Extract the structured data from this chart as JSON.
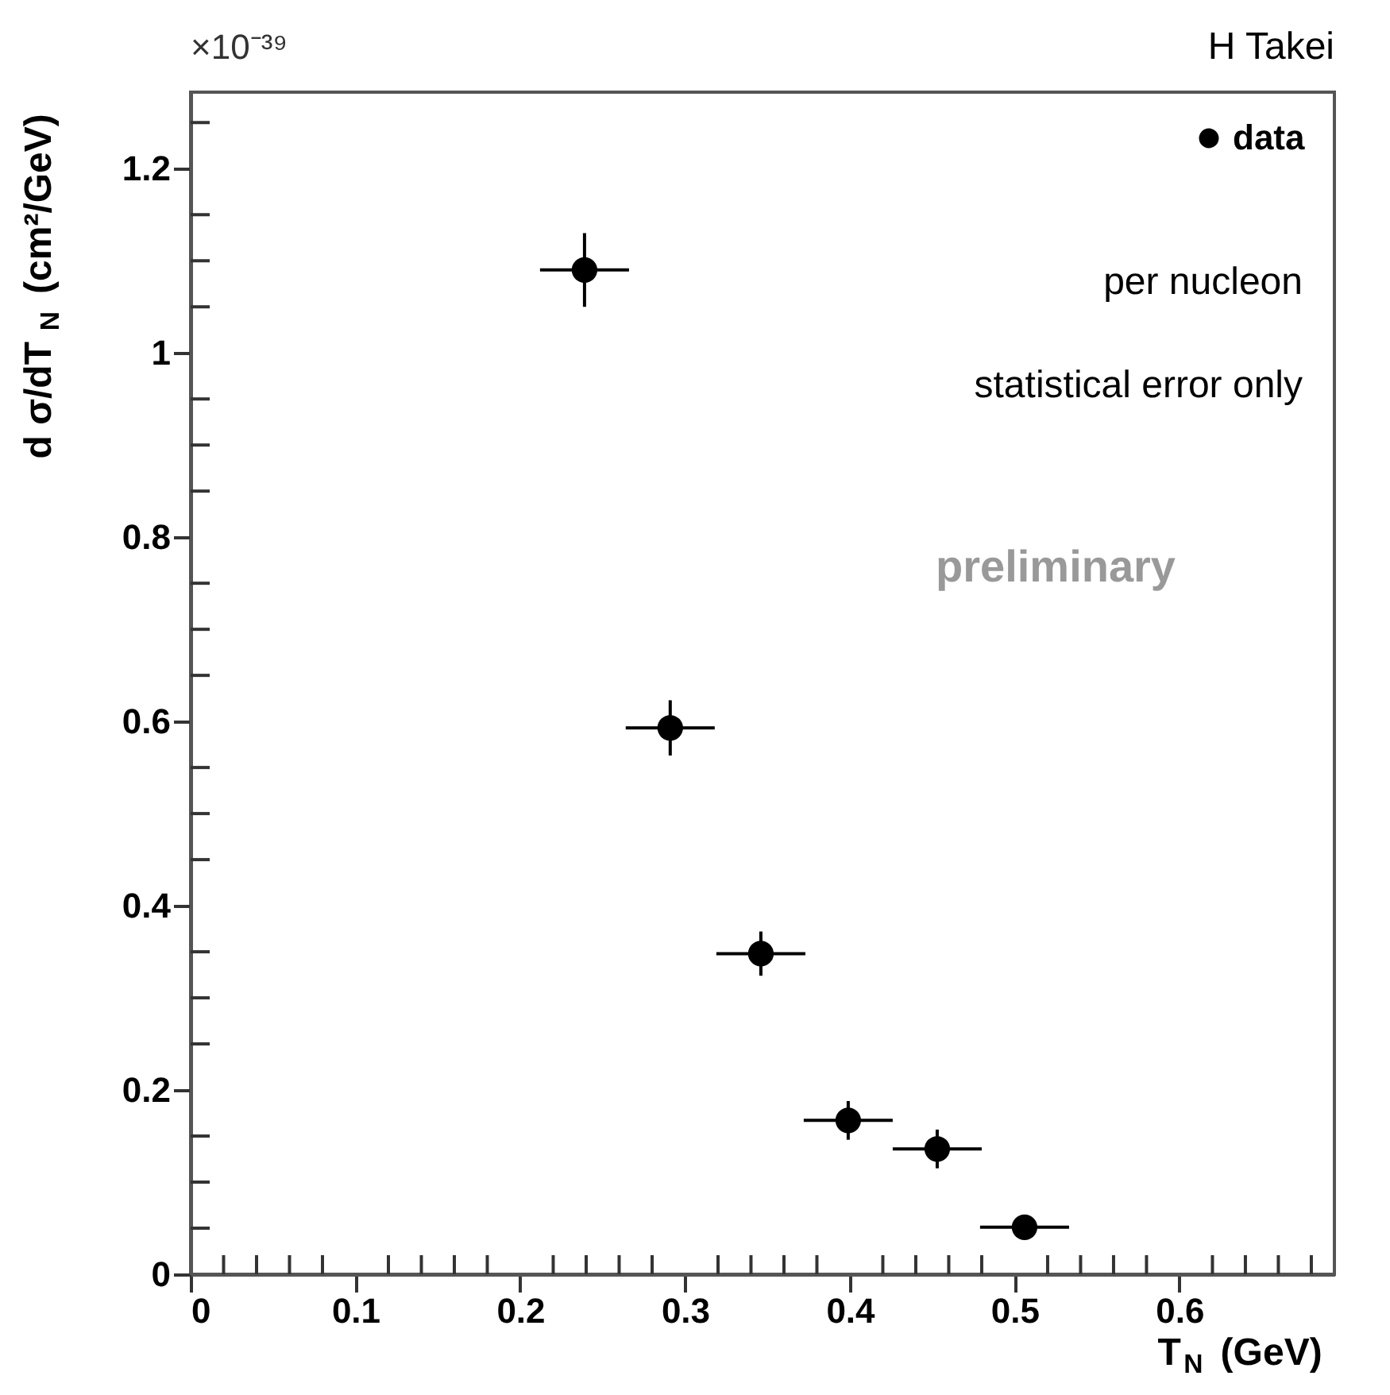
{
  "chart_data": {
    "type": "scatter",
    "xlabel": "T$_{N}$ (GeV)",
    "ylabel": "d σ/dT$_{N}$ (cm²/GeV)",
    "annotations": [
      "×10⁻³⁹",
      "H Takei",
      "per nucleon",
      "statistical error only",
      "preliminary"
    ],
    "x": [
      0.239,
      0.291,
      0.346,
      0.399,
      0.453,
      0.506
    ],
    "series": [
      {
        "name": "data",
        "color": "#000000",
        "values": [
          1.09,
          0.593,
          0.348,
          0.167,
          0.136,
          0.051
        ],
        "errors": [
          0.04,
          0.03,
          0.024,
          0.021,
          0.021,
          null
        ],
        "xerrors": [
          0.027,
          0.027,
          0.027,
          0.027,
          0.027,
          0.027
        ]
      }
    ],
    "marker": "circle",
    "legend": "top right",
    "grid": false,
    "xlim": [
      0,
      0.694
    ],
    "ylim": [
      0,
      1.283
    ],
    "xticks": [
      0,
      {
        "value": 0.02,
        "label": null
      },
      {
        "value": 0.04,
        "label": null
      },
      {
        "value": 0.06,
        "label": null
      },
      {
        "value": 0.08,
        "label": null
      },
      0.1,
      {
        "value": 0.12,
        "label": null
      },
      {
        "value": 0.14,
        "label": null
      },
      {
        "value": 0.16,
        "label": null
      },
      {
        "value": 0.18,
        "label": null
      },
      0.2,
      {
        "value": 0.22,
        "label": null
      },
      {
        "value": 0.24,
        "label": null
      },
      {
        "value": 0.26,
        "label": null
      },
      {
        "value": 0.28,
        "label": null
      },
      0.3,
      {
        "value": 0.32,
        "label": null
      },
      {
        "value": 0.34,
        "label": null
      },
      {
        "value": 0.36,
        "label": null
      },
      {
        "value": 0.38,
        "label": null
      },
      0.4,
      {
        "value": 0.42,
        "label": null
      },
      {
        "value": 0.44,
        "label": null
      },
      {
        "value": 0.46,
        "label": null
      },
      {
        "value": 0.48,
        "label": null
      },
      0.5,
      {
        "value": 0.52,
        "label": null
      },
      {
        "value": 0.54,
        "label": null
      },
      {
        "value": 0.56,
        "label": null
      },
      {
        "value": 0.58,
        "label": null
      },
      0.6,
      {
        "value": 0.62,
        "label": null
      },
      {
        "value": 0.64,
        "label": null
      },
      {
        "value": 0.66,
        "label": null
      },
      {
        "value": 0.68,
        "label": null
      }
    ],
    "yticks": [
      0,
      {
        "value": 0.05,
        "label": null
      },
      {
        "value": 0.1,
        "label": null
      },
      {
        "value": 0.15,
        "label": null
      },
      0.2,
      {
        "value": 0.25,
        "label": null
      },
      {
        "value": 0.3,
        "label": null
      },
      {
        "value": 0.35,
        "label": null
      },
      0.4,
      {
        "value": 0.45,
        "label": null
      },
      {
        "value": 0.5,
        "label": null
      },
      {
        "value": 0.55,
        "label": null
      },
      0.6,
      {
        "value": 0.65,
        "label": null
      },
      {
        "value": 0.7,
        "label": null
      },
      {
        "value": 0.75,
        "label": null
      },
      0.8,
      {
        "value": 0.85,
        "label": null
      },
      {
        "value": 0.9,
        "label": null
      },
      {
        "value": 0.95,
        "label": null
      },
      1,
      {
        "value": 1.05,
        "label": null
      },
      {
        "value": 1.1,
        "label": null
      },
      {
        "value": 1.15,
        "label": null
      },
      1.2,
      {
        "value": 1.25,
        "label": null
      }
    ]
  }
}
